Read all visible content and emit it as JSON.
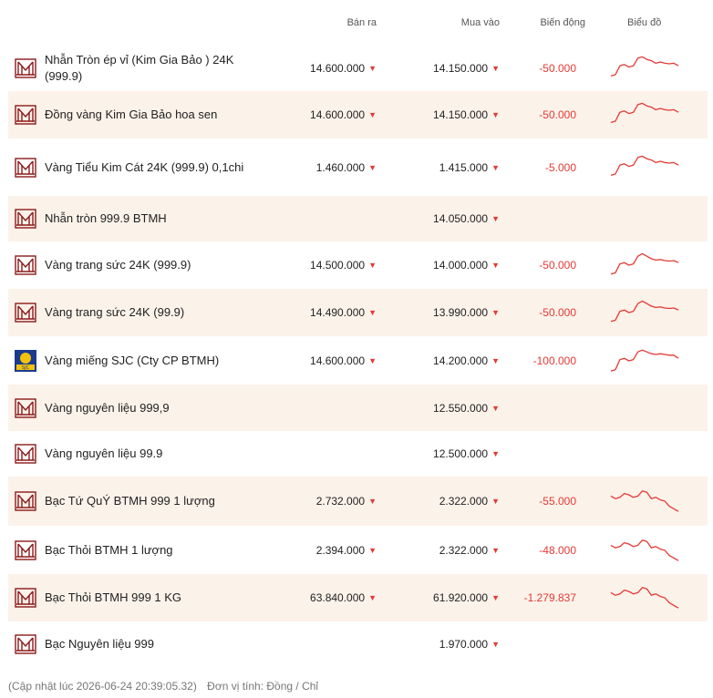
{
  "header": {
    "sell": "Bán ra",
    "buy": "Mua vào",
    "change": "Biến động",
    "chart": "Biểu đồ"
  },
  "rows": [
    {
      "name": "Nhẫn Tròn ép vỉ (Kim Gia Bảo ) 24K (999.9)",
      "sell": "14.600.000",
      "buy": "14.150.000",
      "change": "-50.000",
      "logo": "btmh-logo",
      "trend": [
        0.2,
        0.25,
        0.6,
        0.65,
        0.55,
        0.6,
        0.9,
        0.95,
        0.85,
        0.8,
        0.7,
        0.75,
        0.7,
        0.68,
        0.7,
        0.6
      ]
    },
    {
      "name": "Đồng vàng Kim Gia Bảo hoa sen",
      "sell": "14.600.000",
      "buy": "14.150.000",
      "change": "-50.000",
      "logo": "btmh-logo",
      "trend": [
        0.2,
        0.25,
        0.6,
        0.65,
        0.55,
        0.6,
        0.9,
        0.95,
        0.85,
        0.8,
        0.7,
        0.75,
        0.7,
        0.68,
        0.7,
        0.6
      ]
    },
    {
      "name": "Vàng Tiểu Kim Cát 24K (999.9) 0,1chi",
      "sell": "1.460.000",
      "buy": "1.415.000",
      "change": "-5.000",
      "logo": "btmh-logo",
      "trend": [
        0.2,
        0.25,
        0.6,
        0.65,
        0.55,
        0.6,
        0.9,
        0.95,
        0.85,
        0.8,
        0.7,
        0.75,
        0.7,
        0.68,
        0.7,
        0.6
      ]
    },
    {
      "name": "Nhẫn tròn 999.9 BTMH",
      "sell": "",
      "buy": "14.050.000",
      "change": "",
      "logo": "btmh-logo",
      "trend": []
    },
    {
      "name": "Vàng trang sức 24K (999.9)",
      "sell": "14.500.000",
      "buy": "14.000.000",
      "change": "-50.000",
      "logo": "btmh-logo",
      "trend": [
        0.15,
        0.2,
        0.55,
        0.6,
        0.5,
        0.55,
        0.85,
        0.95,
        0.85,
        0.75,
        0.7,
        0.72,
        0.68,
        0.66,
        0.68,
        0.6
      ]
    },
    {
      "name": "Vàng trang sức 24K (99.9)",
      "sell": "14.490.000",
      "buy": "13.990.000",
      "change": "-50.000",
      "logo": "btmh-logo",
      "trend": [
        0.15,
        0.2,
        0.55,
        0.6,
        0.5,
        0.55,
        0.85,
        0.95,
        0.85,
        0.75,
        0.7,
        0.72,
        0.68,
        0.66,
        0.68,
        0.6
      ]
    },
    {
      "name": "Vàng miếng SJC (Cty CP BTMH)",
      "sell": "14.600.000",
      "buy": "14.200.000",
      "change": "-100.000",
      "logo": "sjc-logo",
      "trend": [
        0.1,
        0.15,
        0.55,
        0.6,
        0.5,
        0.55,
        0.85,
        0.92,
        0.85,
        0.78,
        0.75,
        0.78,
        0.75,
        0.72,
        0.72,
        0.6
      ]
    },
    {
      "name": "Vàng nguyên liệu 999,9",
      "sell": "",
      "buy": "12.550.000",
      "change": "",
      "logo": "btmh-logo",
      "trend": []
    },
    {
      "name": "Vàng nguyên liệu 99.9",
      "sell": "",
      "buy": "12.500.000",
      "change": "",
      "logo": "btmh-logo",
      "trend": []
    },
    {
      "name": "Bạc Tứ QuÝ BTMH 999 1 lượng",
      "sell": "2.732.000",
      "buy": "2.322.000",
      "change": "-55.000",
      "logo": "btmh-logo",
      "trend": [
        0.7,
        0.6,
        0.65,
        0.8,
        0.75,
        0.65,
        0.7,
        0.9,
        0.85,
        0.6,
        0.65,
        0.55,
        0.5,
        0.3,
        0.2,
        0.1
      ]
    },
    {
      "name": "Bạc Thỏi BTMH 1 lượng",
      "sell": "2.394.000",
      "buy": "2.322.000",
      "change": "-48.000",
      "logo": "btmh-logo",
      "trend": [
        0.7,
        0.6,
        0.65,
        0.8,
        0.75,
        0.65,
        0.7,
        0.9,
        0.85,
        0.6,
        0.65,
        0.55,
        0.5,
        0.3,
        0.2,
        0.1
      ]
    },
    {
      "name": "Bạc Thỏi BTMH 999 1 KG",
      "sell": "63.840.000",
      "buy": "61.920.000",
      "change": "-1.279.837",
      "logo": "btmh-logo",
      "trend": [
        0.7,
        0.6,
        0.65,
        0.8,
        0.75,
        0.65,
        0.7,
        0.9,
        0.85,
        0.6,
        0.65,
        0.55,
        0.5,
        0.3,
        0.2,
        0.1
      ]
    },
    {
      "name": "Bạc Nguyên liệu 999",
      "sell": "",
      "buy": "1.970.000",
      "change": "",
      "logo": "btmh-logo",
      "trend": []
    }
  ],
  "arrow": "▼",
  "footer": {
    "updated": "(Cập nhật lúc 2026-06-24 20:39:05.32)",
    "unit": "Đơn vị tính: Đồng / Chỉ"
  },
  "colors": {
    "accent": "#e53935",
    "alt_row": "#fbf2ea",
    "logo": "#8b1a1a"
  }
}
